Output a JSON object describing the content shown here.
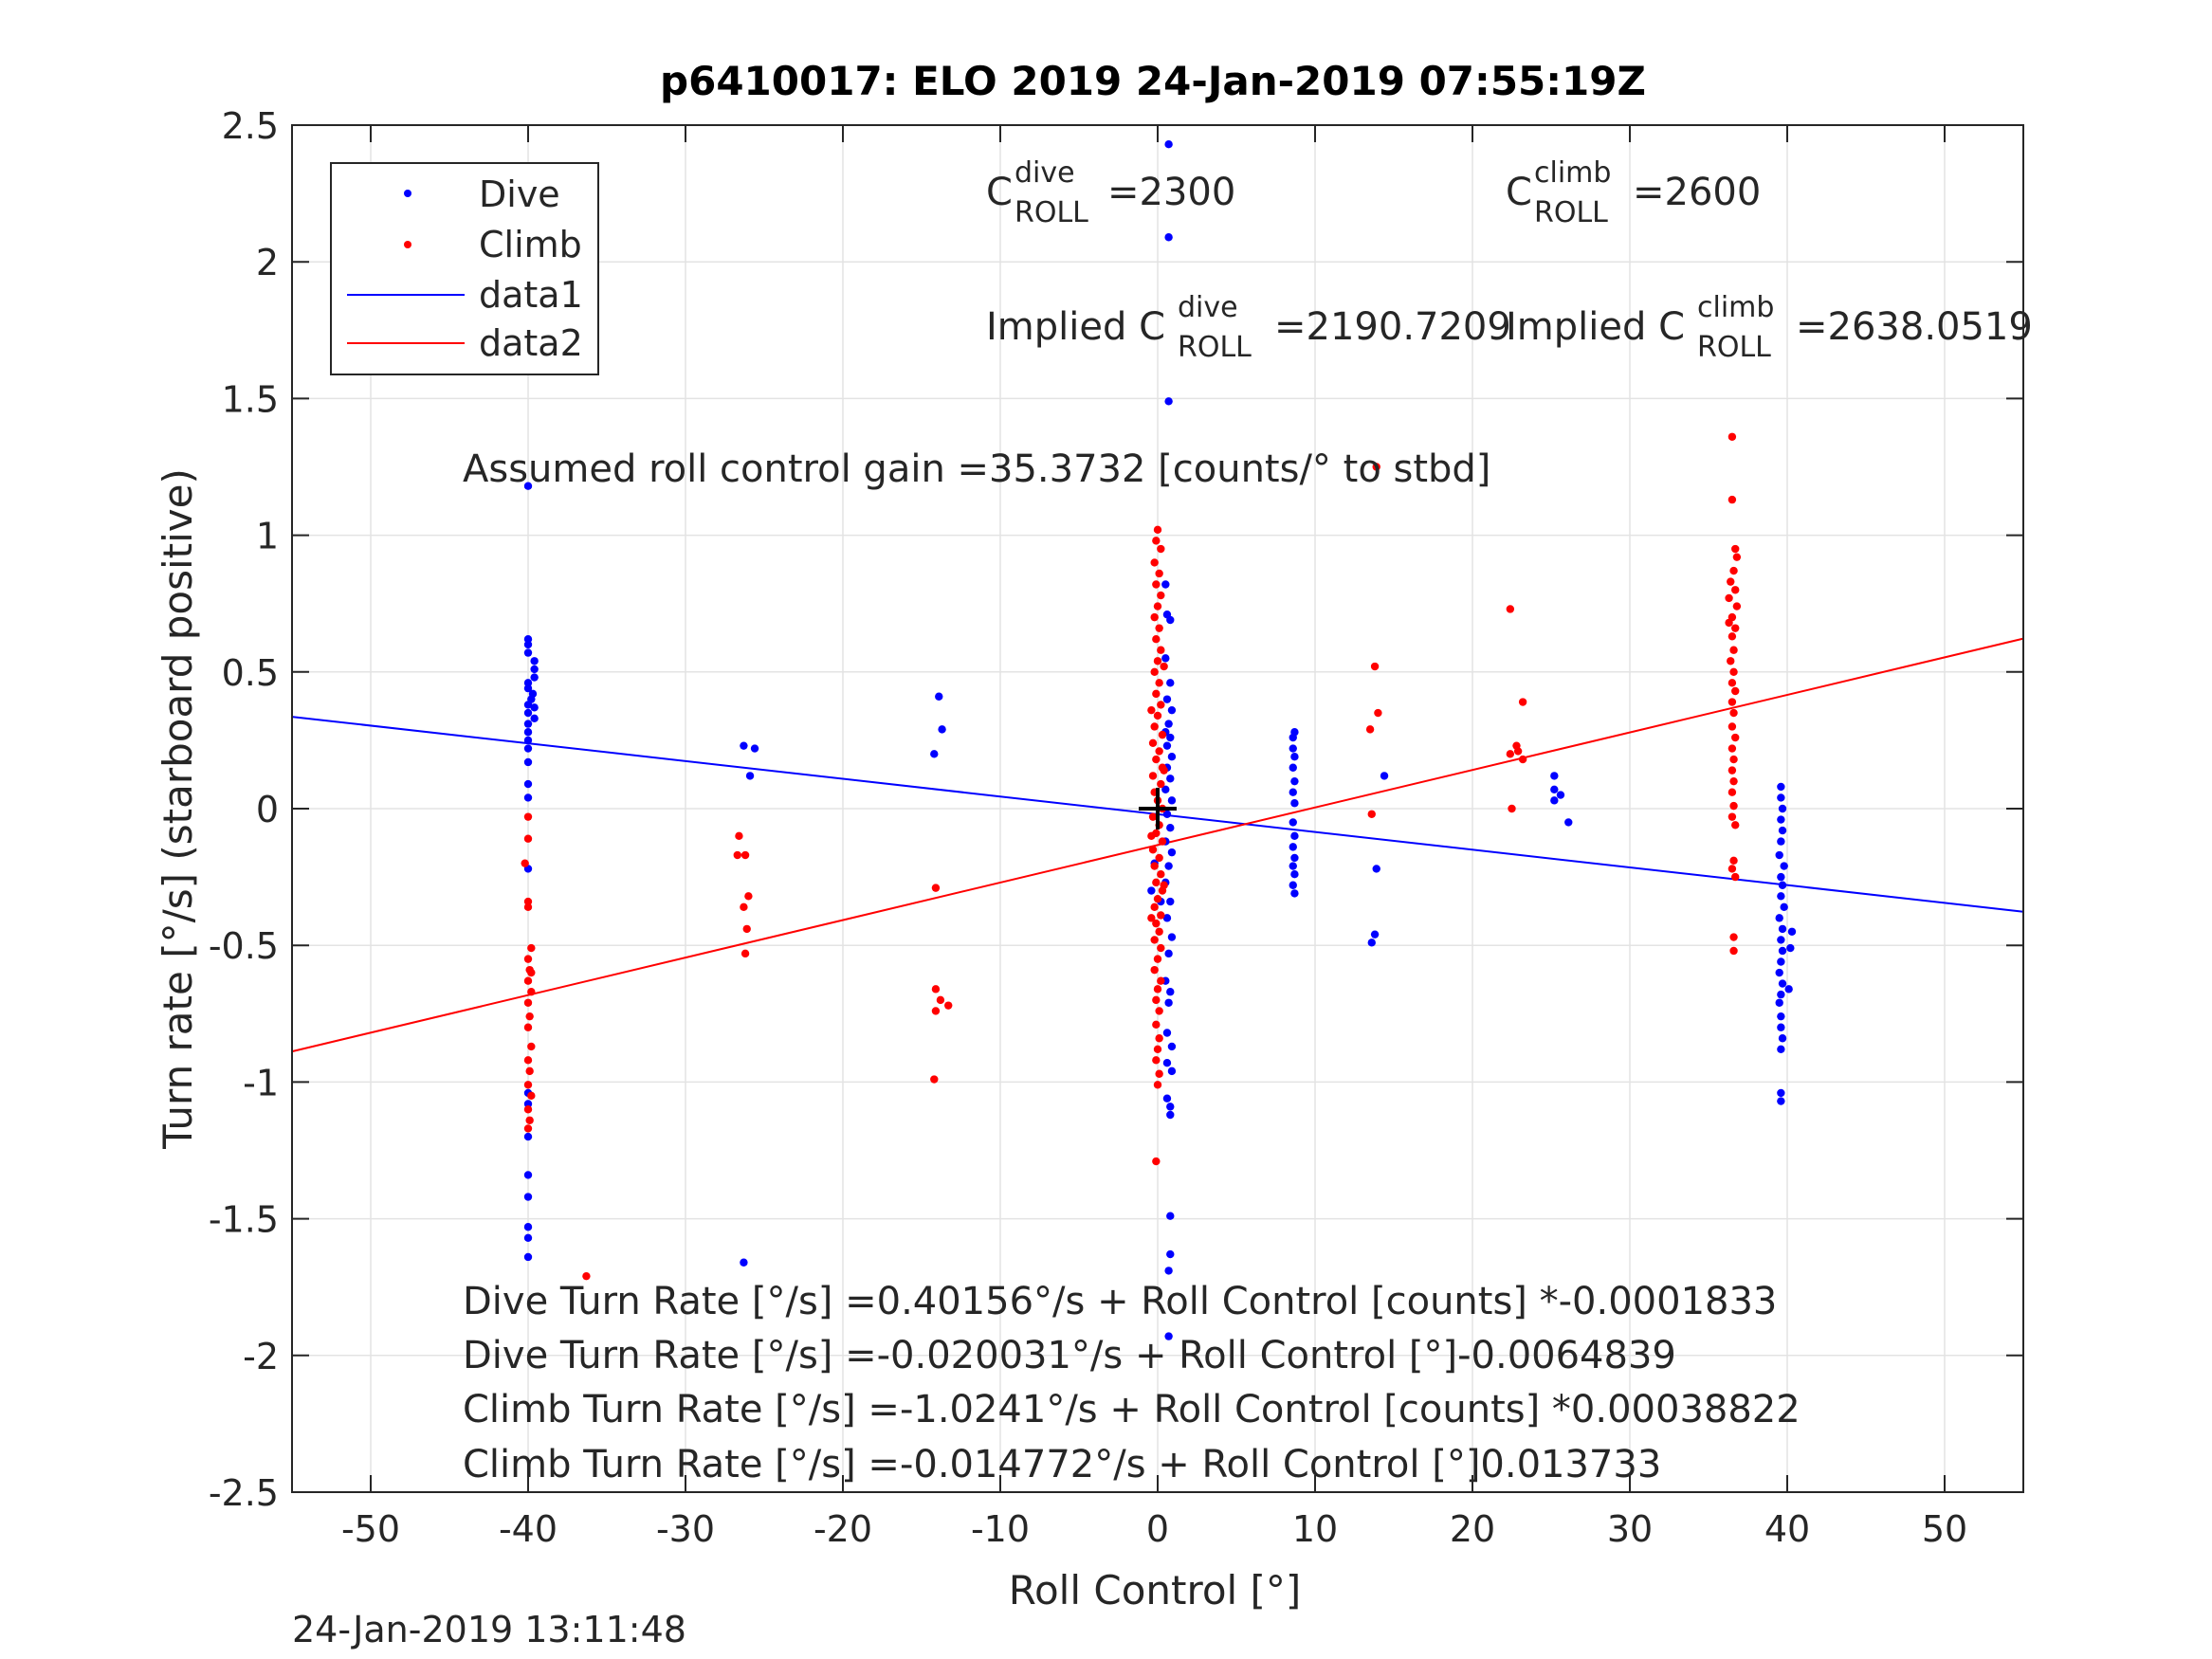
{
  "chart_data": {
    "type": "scatter",
    "title": "p6410017: ELO 2019 24-Jan-2019 07:55:19Z",
    "xlabel": "Roll Control [°]",
    "ylabel": "Turn rate [°/s] (starboard positive)",
    "xlim": [
      -55,
      55
    ],
    "ylim": [
      -2.5,
      2.5
    ],
    "xticks": [
      -50,
      -40,
      -30,
      -20,
      -10,
      0,
      10,
      20,
      30,
      40,
      50
    ],
    "yticks": [
      -2.5,
      -2,
      -1.5,
      -1,
      -0.5,
      0,
      0.5,
      1,
      1.5,
      2,
      2.5
    ],
    "grid": true,
    "legend_position": "top-left",
    "colors": {
      "dive": "#0000ff",
      "climb": "#ff0000",
      "marker": "#000000"
    },
    "series": [
      {
        "name": "Dive",
        "kind": "points",
        "color": "#0000ff",
        "points": [
          [
            -40,
            0.62
          ],
          [
            -40,
            0.6
          ],
          [
            -40,
            0.57
          ],
          [
            -39.6,
            0.54
          ],
          [
            -39.6,
            0.51
          ],
          [
            -39.6,
            0.48
          ],
          [
            -40,
            0.46
          ],
          [
            -40,
            0.44
          ],
          [
            -39.7,
            0.42
          ],
          [
            -39.8,
            0.4
          ],
          [
            -40,
            0.38
          ],
          [
            -39.6,
            0.37
          ],
          [
            -40,
            0.35
          ],
          [
            -39.6,
            0.33
          ],
          [
            -40,
            0.31
          ],
          [
            -40,
            0.28
          ],
          [
            -40,
            0.25
          ],
          [
            -40,
            0.22
          ],
          [
            -40,
            0.17
          ],
          [
            -40,
            0.09
          ],
          [
            -40,
            0.04
          ],
          [
            -40,
            -0.22
          ],
          [
            -40,
            -1.04
          ],
          [
            -40,
            -1.08
          ],
          [
            -40,
            -1.2
          ],
          [
            -40,
            -1.34
          ],
          [
            -40,
            -1.42
          ],
          [
            -40,
            -1.53
          ],
          [
            -40,
            -1.57
          ],
          [
            -40,
            -1.64
          ],
          [
            -40,
            1.18
          ],
          [
            -26.3,
            0.23
          ],
          [
            -25.6,
            0.22
          ],
          [
            -25.9,
            0.12
          ],
          [
            -26.3,
            -1.66
          ],
          [
            -14.2,
            0.2
          ],
          [
            -13.7,
            0.29
          ],
          [
            -13.9,
            0.41
          ],
          [
            0.7,
            2.43
          ],
          [
            0.7,
            2.09
          ],
          [
            0.7,
            1.49
          ],
          [
            0.5,
            0.82
          ],
          [
            0.6,
            0.71
          ],
          [
            0.8,
            0.69
          ],
          [
            0.5,
            0.55
          ],
          [
            0.8,
            0.46
          ],
          [
            0.6,
            0.4
          ],
          [
            0.9,
            0.36
          ],
          [
            0.7,
            0.31
          ],
          [
            0.5,
            0.28
          ],
          [
            0.8,
            0.26
          ],
          [
            0.6,
            0.23
          ],
          [
            0.9,
            0.19
          ],
          [
            0.6,
            0.15
          ],
          [
            0.8,
            0.11
          ],
          [
            0.5,
            0.07
          ],
          [
            0.9,
            0.03
          ],
          [
            0.6,
            -0.02
          ],
          [
            0.8,
            -0.07
          ],
          [
            0.5,
            -0.12
          ],
          [
            0.9,
            -0.16
          ],
          [
            0.7,
            -0.21
          ],
          [
            0.5,
            -0.27
          ],
          [
            0.8,
            -0.34
          ],
          [
            0.6,
            -0.4
          ],
          [
            0.9,
            -0.47
          ],
          [
            0.7,
            -0.53
          ],
          [
            0.5,
            -0.63
          ],
          [
            0.8,
            -0.67
          ],
          [
            0.7,
            -0.71
          ],
          [
            0.6,
            -0.82
          ],
          [
            0.9,
            -0.87
          ],
          [
            0.6,
            -0.93
          ],
          [
            0.9,
            -0.96
          ],
          [
            0.6,
            -1.06
          ],
          [
            0.8,
            -1.09
          ],
          [
            0.8,
            -1.12
          ],
          [
            0.8,
            -1.49
          ],
          [
            0.8,
            -1.63
          ],
          [
            0.7,
            -1.69
          ],
          [
            0.7,
            -1.93
          ],
          [
            -0.2,
            -0.2
          ],
          [
            -0.4,
            -0.3
          ],
          [
            0.2,
            -0.34
          ],
          [
            8.7,
            0.28
          ],
          [
            8.6,
            0.26
          ],
          [
            8.6,
            0.22
          ],
          [
            8.7,
            0.19
          ],
          [
            8.6,
            0.15
          ],
          [
            8.7,
            0.1
          ],
          [
            8.6,
            0.06
          ],
          [
            8.7,
            0.02
          ],
          [
            8.6,
            -0.05
          ],
          [
            8.7,
            -0.1
          ],
          [
            8.6,
            -0.14
          ],
          [
            8.7,
            -0.18
          ],
          [
            8.6,
            -0.21
          ],
          [
            8.7,
            -0.24
          ],
          [
            8.6,
            -0.28
          ],
          [
            8.7,
            -0.31
          ],
          [
            14.4,
            0.12
          ],
          [
            13.9,
            -0.22
          ],
          [
            13.8,
            -0.46
          ],
          [
            13.6,
            -0.49
          ],
          [
            25.2,
            0.12
          ],
          [
            25.2,
            0.07
          ],
          [
            25.2,
            0.03
          ],
          [
            25.6,
            0.05
          ],
          [
            26.1,
            -0.05
          ],
          [
            39.6,
            0.08
          ],
          [
            39.6,
            0.04
          ],
          [
            39.7,
            0.0
          ],
          [
            39.6,
            -0.04
          ],
          [
            39.7,
            -0.08
          ],
          [
            39.6,
            -0.12
          ],
          [
            39.5,
            -0.17
          ],
          [
            39.8,
            -0.21
          ],
          [
            39.6,
            -0.25
          ],
          [
            39.7,
            -0.28
          ],
          [
            39.6,
            -0.32
          ],
          [
            39.8,
            -0.36
          ],
          [
            39.5,
            -0.4
          ],
          [
            39.7,
            -0.44
          ],
          [
            39.6,
            -0.48
          ],
          [
            39.7,
            -0.52
          ],
          [
            39.6,
            -0.56
          ],
          [
            39.5,
            -0.6
          ],
          [
            39.7,
            -0.64
          ],
          [
            39.6,
            -0.68
          ],
          [
            39.5,
            -0.71
          ],
          [
            39.6,
            -0.76
          ],
          [
            39.6,
            -0.8
          ],
          [
            39.7,
            -0.84
          ],
          [
            39.6,
            -0.88
          ],
          [
            39.6,
            -1.04
          ],
          [
            39.6,
            -1.07
          ],
          [
            40.2,
            -0.51
          ],
          [
            40.3,
            -0.45
          ],
          [
            40.1,
            -0.66
          ]
        ]
      },
      {
        "name": "Climb",
        "kind": "points",
        "color": "#ff0000",
        "points": [
          [
            -40,
            -0.03
          ],
          [
            -40,
            -0.11
          ],
          [
            -40.2,
            -0.2
          ],
          [
            -40,
            -0.34
          ],
          [
            -40,
            -0.36
          ],
          [
            -39.8,
            -0.51
          ],
          [
            -40,
            -0.55
          ],
          [
            -39.9,
            -0.59
          ],
          [
            -40,
            -0.63
          ],
          [
            -39.8,
            -0.67
          ],
          [
            -40,
            -0.71
          ],
          [
            -39.9,
            -0.76
          ],
          [
            -40,
            -0.8
          ],
          [
            -39.8,
            -0.87
          ],
          [
            -40,
            -0.92
          ],
          [
            -39.9,
            -0.96
          ],
          [
            -40,
            -1.01
          ],
          [
            -39.8,
            -1.05
          ],
          [
            -40,
            -1.1
          ],
          [
            -39.9,
            -1.14
          ],
          [
            -40,
            -1.17
          ],
          [
            -39.8,
            -0.6
          ],
          [
            -36.3,
            -1.71
          ],
          [
            -26.6,
            -0.1
          ],
          [
            -26.7,
            -0.17
          ],
          [
            -26.2,
            -0.17
          ],
          [
            -26.3,
            -0.36
          ],
          [
            -26.0,
            -0.32
          ],
          [
            -26.1,
            -0.44
          ],
          [
            -26.2,
            -0.53
          ],
          [
            -14.1,
            -0.29
          ],
          [
            -14.1,
            -0.66
          ],
          [
            -13.8,
            -0.7
          ],
          [
            -13.3,
            -0.72
          ],
          [
            -14.1,
            -0.74
          ],
          [
            -14.2,
            -0.99
          ],
          [
            13.5,
            0.29
          ],
          [
            13.6,
            -0.02
          ],
          [
            13.8,
            0.52
          ],
          [
            14.0,
            0.35
          ],
          [
            13.9,
            1.25
          ],
          [
            22.4,
            0.73
          ],
          [
            22.4,
            0.2
          ],
          [
            22.9,
            0.21
          ],
          [
            22.8,
            0.23
          ],
          [
            23.2,
            0.18
          ],
          [
            23.2,
            0.39
          ],
          [
            22.5,
            0.0
          ],
          [
            36.5,
            1.36
          ],
          [
            36.5,
            1.13
          ],
          [
            36.7,
            0.95
          ],
          [
            36.8,
            0.92
          ],
          [
            36.6,
            0.87
          ],
          [
            36.4,
            0.83
          ],
          [
            36.7,
            0.8
          ],
          [
            36.3,
            0.77
          ],
          [
            36.8,
            0.74
          ],
          [
            36.5,
            0.7
          ],
          [
            36.3,
            0.68
          ],
          [
            36.7,
            0.66
          ],
          [
            36.5,
            0.63
          ],
          [
            36.6,
            0.58
          ],
          [
            36.4,
            0.54
          ],
          [
            36.6,
            0.5
          ],
          [
            36.5,
            0.46
          ],
          [
            36.7,
            0.43
          ],
          [
            36.5,
            0.39
          ],
          [
            36.6,
            0.35
          ],
          [
            36.5,
            0.3
          ],
          [
            36.7,
            0.26
          ],
          [
            36.5,
            0.22
          ],
          [
            36.6,
            0.18
          ],
          [
            36.5,
            0.14
          ],
          [
            36.6,
            0.1
          ],
          [
            36.5,
            0.06
          ],
          [
            36.6,
            0.01
          ],
          [
            36.5,
            -0.03
          ],
          [
            36.7,
            -0.06
          ],
          [
            36.6,
            -0.19
          ],
          [
            36.5,
            -0.22
          ],
          [
            36.7,
            -0.25
          ],
          [
            36.6,
            -0.47
          ],
          [
            36.6,
            -0.52
          ],
          [
            0.0,
            1.02
          ],
          [
            -0.1,
            0.98
          ],
          [
            0.2,
            0.95
          ],
          [
            -0.2,
            0.9
          ],
          [
            0.1,
            0.86
          ],
          [
            -0.1,
            0.82
          ],
          [
            0.2,
            0.78
          ],
          [
            0.0,
            0.74
          ],
          [
            -0.2,
            0.7
          ],
          [
            0.1,
            0.66
          ],
          [
            -0.1,
            0.62
          ],
          [
            0.2,
            0.58
          ],
          [
            0.0,
            0.54
          ],
          [
            -0.2,
            0.5
          ],
          [
            0.1,
            0.46
          ],
          [
            -0.1,
            0.42
          ],
          [
            0.2,
            0.38
          ],
          [
            0.0,
            0.34
          ],
          [
            -0.2,
            0.3
          ],
          [
            0.3,
            0.27
          ],
          [
            -0.3,
            0.24
          ],
          [
            0.1,
            0.21
          ],
          [
            -0.1,
            0.18
          ],
          [
            0.3,
            0.15
          ],
          [
            -0.3,
            0.12
          ],
          [
            0.2,
            0.09
          ],
          [
            -0.2,
            0.06
          ],
          [
            0.0,
            0.03
          ],
          [
            0.3,
            0.0
          ],
          [
            -0.3,
            -0.03
          ],
          [
            0.1,
            -0.06
          ],
          [
            -0.1,
            -0.09
          ],
          [
            0.3,
            -0.12
          ],
          [
            -0.3,
            -0.15
          ],
          [
            0.1,
            -0.18
          ],
          [
            -0.2,
            -0.21
          ],
          [
            0.2,
            -0.24
          ],
          [
            -0.1,
            -0.27
          ],
          [
            0.3,
            -0.3
          ],
          [
            0.0,
            -0.33
          ],
          [
            -0.2,
            -0.36
          ],
          [
            0.2,
            -0.39
          ],
          [
            -0.1,
            -0.42
          ],
          [
            0.1,
            -0.45
          ],
          [
            -0.2,
            -0.48
          ],
          [
            0.2,
            -0.51
          ],
          [
            0.0,
            -0.55
          ],
          [
            -0.2,
            -0.59
          ],
          [
            0.2,
            -0.63
          ],
          [
            0.0,
            -0.66
          ],
          [
            -0.1,
            -0.7
          ],
          [
            0.1,
            -0.74
          ],
          [
            -0.1,
            -0.79
          ],
          [
            0.1,
            -0.84
          ],
          [
            0.0,
            -0.88
          ],
          [
            -0.1,
            -0.92
          ],
          [
            0.1,
            -0.97
          ],
          [
            0.0,
            -1.01
          ],
          [
            -0.1,
            -1.29
          ],
          [
            0.4,
            0.52
          ],
          [
            -0.4,
            0.36
          ],
          [
            0.4,
            0.14
          ],
          [
            -0.4,
            -0.1
          ],
          [
            0.4,
            -0.28
          ],
          [
            -0.4,
            -0.4
          ]
        ]
      },
      {
        "name": "data1",
        "kind": "line",
        "color": "#0000ff",
        "points": [
          [
            -55,
            0.336
          ],
          [
            55,
            -0.377
          ]
        ]
      },
      {
        "name": "data2",
        "kind": "line",
        "color": "#ff0000",
        "points": [
          [
            -55,
            -0.888
          ],
          [
            55,
            0.622
          ]
        ]
      }
    ],
    "center_marker": {
      "x": 0,
      "y": 0
    },
    "annotations": {
      "c_dive_prefix": "C",
      "c_dive_sup": "dive",
      "c_dive_sub": "ROLL",
      "c_dive_value": "=2300",
      "c_climb_prefix": "C",
      "c_climb_sup": "climb",
      "c_climb_sub": "ROLL",
      "c_climb_value": "=2600",
      "implied_dive_prefix": "Implied C",
      "implied_dive_sup": "dive",
      "implied_dive_sub": "ROLL",
      "implied_dive_value": "=2190.7209",
      "implied_climb_prefix": "Implied C",
      "implied_climb_sup": "climb",
      "implied_climb_sub": "ROLL",
      "implied_climb_value": "=2638.0519",
      "gain": "Assumed roll control gain =35.3732 [counts/° to stbd]",
      "eq1": "Dive Turn Rate [°/s] =0.40156°/s + Roll Control [counts] *-0.0001833",
      "eq2": "Dive Turn Rate [°/s] =-0.020031°/s + Roll Control [°]-0.0064839",
      "eq3": "Climb Turn Rate [°/s] =-1.0241°/s + Roll Control [counts] *0.00038822",
      "eq4": "Climb Turn Rate [°/s] =-0.014772°/s + Roll Control [°]0.013733"
    },
    "timestamp": "24-Jan-2019 13:11:48"
  }
}
